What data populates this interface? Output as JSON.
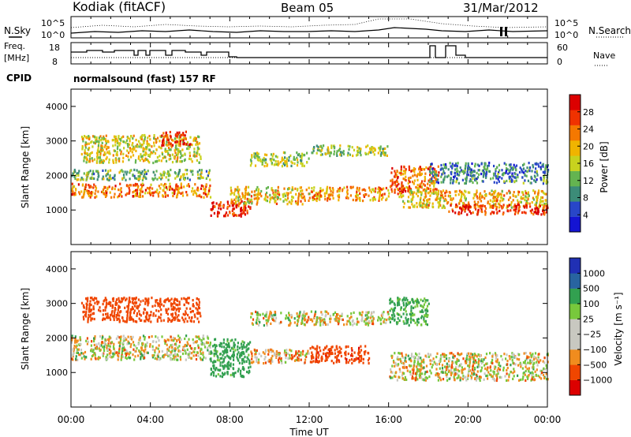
{
  "header": {
    "station": "Kodiak (fitACF)",
    "beam": "Beam 05",
    "date": "31/Mar/2012"
  },
  "summary_panel": {
    "left_label_top": "N.Sky",
    "left_label_freq": "Freq.",
    "left_label_freq_unit": "[MHz]",
    "left_label_cpid": "CPID",
    "right_label_top": "N.Search",
    "right_label_nave": "Nave",
    "noise_axis_top": "10^5",
    "noise_axis_bottom": "10^0",
    "freq_axis_top": "18",
    "freq_axis_bottom": "8",
    "nave_axis_top": "60",
    "nave_axis_bottom": "0",
    "cpid_text": "normalsound (fast) 157 RF"
  },
  "colors": {
    "power_scale": [
      "#1414d2",
      "#2846c8",
      "#3c8c78",
      "#64b450",
      "#c8d21e",
      "#f0b400",
      "#f57800",
      "#f03200",
      "#dc0000"
    ],
    "velocity_scale": [
      "#dc0000",
      "#f04600",
      "#f08c1e",
      "#c8c8c0",
      "#c8c8c0",
      "#78c83c",
      "#32a050",
      "#2864a0",
      "#2030b4"
    ]
  },
  "chart_data": [
    {
      "type": "heatmap",
      "name": "power",
      "ylabel": "Slant Range [km]",
      "ylim": [
        0,
        4500
      ],
      "yticks": [
        "1000",
        "2000",
        "3000",
        "4000"
      ],
      "xlim_hours": [
        0,
        24
      ],
      "colorbar_label": "Power [dB]",
      "colorbar_ticks": [
        "4",
        "8",
        "12",
        "16",
        "20",
        "24",
        "28"
      ],
      "colorbar_range": [
        0,
        30
      ],
      "bands": [
        {
          "t0": 0.0,
          "t1": 7.0,
          "r0": 1400,
          "r1": 1800,
          "value": 22
        },
        {
          "t0": 0.0,
          "t1": 7.0,
          "r0": 1900,
          "r1": 2200,
          "value": 12
        },
        {
          "t0": 0.5,
          "t1": 6.5,
          "r0": 2400,
          "r1": 3200,
          "value": 16
        },
        {
          "t0": 4.5,
          "t1": 6.0,
          "r0": 2900,
          "r1": 3300,
          "value": 26
        },
        {
          "t0": 7.0,
          "t1": 9.0,
          "r0": 850,
          "r1": 1300,
          "value": 26
        },
        {
          "t0": 8.0,
          "t1": 12.0,
          "r0": 1200,
          "r1": 1700,
          "value": 18
        },
        {
          "t0": 9.0,
          "t1": 12.0,
          "r0": 2300,
          "r1": 2700,
          "value": 14
        },
        {
          "t0": 12.0,
          "t1": 16.0,
          "r0": 1300,
          "r1": 1700,
          "value": 20
        },
        {
          "t0": 12.0,
          "t1": 16.0,
          "r0": 2600,
          "r1": 2900,
          "value": 14
        },
        {
          "t0": 16.0,
          "t1": 18.5,
          "r0": 1500,
          "r1": 2300,
          "value": 22
        },
        {
          "t0": 16.5,
          "t1": 24.0,
          "r0": 1100,
          "r1": 1600,
          "value": 18
        },
        {
          "t0": 19.0,
          "t1": 24.0,
          "r0": 900,
          "r1": 1200,
          "value": 26
        },
        {
          "t0": 18.0,
          "t1": 24.0,
          "r0": 1800,
          "r1": 2400,
          "value": 8
        }
      ]
    },
    {
      "type": "heatmap",
      "name": "velocity",
      "ylabel": "Slant Range [km]",
      "ylim": [
        0,
        4500
      ],
      "yticks": [
        "1000",
        "2000",
        "3000",
        "4000"
      ],
      "xlim_hours": [
        0,
        24
      ],
      "xticks": [
        "00:00",
        "04:00",
        "08:00",
        "12:00",
        "16:00",
        "20:00",
        "00:00"
      ],
      "xlabel": "Time UT",
      "colorbar_label": "Velocity [m s⁻¹]",
      "colorbar_ticks": [
        "1000",
        "500",
        "100",
        "25",
        "−25",
        "−100",
        "−500",
        "−1000"
      ],
      "colorbar_range": [
        -1000,
        1000
      ],
      "bands": [
        {
          "t0": 0.0,
          "t1": 7.0,
          "r0": 1400,
          "r1": 2100,
          "value": 0
        },
        {
          "t0": 0.5,
          "t1": 6.5,
          "r0": 2500,
          "r1": 3200,
          "value": -300
        },
        {
          "t0": 7.0,
          "t1": 9.0,
          "r0": 900,
          "r1": 2000,
          "value": 200
        },
        {
          "t0": 9.0,
          "t1": 12.0,
          "r0": 1300,
          "r1": 1700,
          "value": -60
        },
        {
          "t0": 12.0,
          "t1": 15.0,
          "r0": 1300,
          "r1": 1800,
          "value": -400
        },
        {
          "t0": 9.0,
          "t1": 16.0,
          "r0": 2400,
          "r1": 2800,
          "value": 0
        },
        {
          "t0": 16.0,
          "t1": 24.0,
          "r0": 800,
          "r1": 1600,
          "value": 0
        },
        {
          "t0": 16.0,
          "t1": 18.0,
          "r0": 2400,
          "r1": 3200,
          "value": 150
        }
      ]
    }
  ]
}
